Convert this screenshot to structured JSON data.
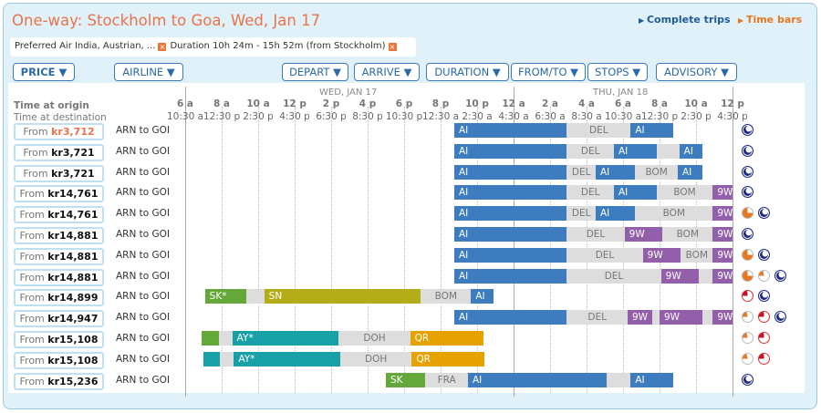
{
  "title": "One-way: Stockholm to Goa, Wed, Jan 17",
  "view_links": [
    {
      "label": "Complete trips",
      "color": "#1f5a99"
    },
    {
      "label": "Time bars",
      "color": "#e87722"
    }
  ],
  "filters": [
    "Preferred Air India, Austrian, ...",
    "Duration 10h 24m - 15h 52m (from Stockholm)"
  ],
  "sort_buttons": [
    "PRICE ▼",
    "AIRLINE ▼",
    "DEPART ▼",
    "ARRIVE ▼",
    "DURATION ▼",
    "FROM/TO ▼",
    "STOPS ▼",
    "ADVISORY ▼"
  ],
  "header": {
    "origin_label": "Time at origin",
    "destination_label": "Time at destination",
    "day1": "WED, JAN 17",
    "day2": "THU, JAN 18"
  },
  "ticks_origin": [
    "6 a",
    "8 a",
    "10 a",
    "12 p",
    "2 p",
    "4 p",
    "6 p",
    "8 p",
    "10 p",
    "12 a",
    "2 a",
    "4 a",
    "6 a",
    "8 a",
    "10 a",
    "12 p"
  ],
  "ticks_destination": [
    "10:30 a",
    "12:30 p",
    "2:30 p",
    "4:30 p",
    "6:30 p",
    "8:30 p",
    "10:30 p",
    "12:30 a",
    "2:30 a",
    "4:30 a",
    "6:30 a",
    "8:30 a",
    "10:30 a",
    "12:30 p",
    "2:30 p",
    "4:30 p"
  ],
  "airline_colors": {
    "AI": "#3d7dbf",
    "9W": "#935fab",
    "SK": "#64a83a",
    "SK*": "#64a83a",
    "SN": "#b3ad19",
    "AY": "#17a0a6",
    "AY*": "#17a0a6",
    "QR": "#e5a200",
    "layover": "#dddddd"
  },
  "rows": [
    {
      "from": "From",
      "price": "kr3,712",
      "best": true,
      "route": "ARN to GOI",
      "segments": [
        [
          "AI",
          "Wed 20:45",
          "Thu 02:55"
        ],
        [
          "DEL",
          "Thu 02:55",
          "Thu 06:25",
          1
        ],
        [
          "AI",
          "Thu 06:25",
          "Thu 08:45"
        ]
      ],
      "advisory": [
        "overnight"
      ]
    },
    {
      "from": "From",
      "price": "kr3,721",
      "route": "ARN to GOI",
      "segments": [
        [
          "AI",
          "Wed 20:45",
          "Thu 02:55"
        ],
        [
          "DEL",
          "Thu 02:55",
          "Thu 05:30",
          1
        ],
        [
          "AI",
          "Thu 05:30",
          "Thu 07:50"
        ],
        [
          "",
          "Thu 07:50",
          "Thu 09:05",
          1
        ],
        [
          "AI",
          "Thu 09:05",
          "Thu 10:20"
        ]
      ],
      "advisory": [
        "overnight"
      ]
    },
    {
      "from": "From",
      "price": "kr3,721",
      "route": "ARN to GOI",
      "segments": [
        [
          "AI",
          "Wed 20:45",
          "Thu 02:55"
        ],
        [
          "DEL",
          "Thu 02:55",
          "Thu 04:30",
          1
        ],
        [
          "AI",
          "Thu 04:30",
          "Thu 06:40"
        ],
        [
          "BOM",
          "Thu 06:40",
          "Thu 09:00",
          1
        ],
        [
          "AI",
          "Thu 09:00",
          "Thu 10:20"
        ]
      ],
      "advisory": [
        "overnight"
      ]
    },
    {
      "from": "From",
      "price": "kr14,761",
      "route": "ARN to GOI",
      "segments": [
        [
          "AI",
          "Wed 20:45",
          "Thu 02:55"
        ],
        [
          "DEL",
          "Thu 02:55",
          "Thu 05:30",
          1
        ],
        [
          "AI",
          "Thu 05:30",
          "Thu 07:50"
        ],
        [
          "BOM",
          "Thu 07:50",
          "Thu 10:55",
          1
        ],
        [
          "9W",
          "Thu 10:55",
          "Thu 12:00"
        ]
      ],
      "advisory": [
        "overnight"
      ]
    },
    {
      "from": "From",
      "price": "kr14,761",
      "route": "ARN to GOI",
      "segments": [
        [
          "AI",
          "Wed 20:45",
          "Thu 02:55"
        ],
        [
          "DEL",
          "Thu 02:55",
          "Thu 04:30",
          1
        ],
        [
          "AI",
          "Thu 04:30",
          "Thu 06:40"
        ],
        [
          "BOM",
          "Thu 06:40",
          "Thu 10:55",
          1
        ],
        [
          "9W",
          "Thu 10:55",
          "Thu 12:00"
        ]
      ],
      "advisory": [
        "long-layover",
        "overnight"
      ]
    },
    {
      "from": "From",
      "price": "kr14,881",
      "route": "ARN to GOI",
      "segments": [
        [
          "AI",
          "Wed 20:45",
          "Thu 02:55"
        ],
        [
          "DEL",
          "Thu 02:55",
          "Thu 06:05",
          1
        ],
        [
          "9W",
          "Thu 06:05",
          "Thu 08:10"
        ],
        [
          "BOM",
          "Thu 08:10",
          "Thu 10:55",
          1
        ],
        [
          "9W",
          "Thu 10:55",
          "Thu 12:00"
        ]
      ],
      "advisory": [
        "overnight"
      ]
    },
    {
      "from": "From",
      "price": "kr14,881",
      "route": "ARN to GOI",
      "segments": [
        [
          "AI",
          "Wed 20:45",
          "Thu 02:55"
        ],
        [
          "DEL",
          "Thu 02:55",
          "Thu 07:05",
          1
        ],
        [
          "9W",
          "Thu 07:05",
          "Thu 09:10"
        ],
        [
          "BOM",
          "Thu 09:10",
          "Thu 10:55",
          1
        ],
        [
          "9W",
          "Thu 10:55",
          "Thu 12:00"
        ]
      ],
      "advisory": [
        "long-layover",
        "overnight"
      ]
    },
    {
      "from": "From",
      "price": "kr14,881",
      "route": "ARN to GOI",
      "segments": [
        [
          "AI",
          "Wed 20:45",
          "Thu 02:55"
        ],
        [
          "DEL",
          "Thu 02:55",
          "Thu 08:05",
          1
        ],
        [
          "9W",
          "Thu 08:05",
          "Thu 10:10"
        ],
        [
          "",
          "Thu 10:10",
          "Thu 10:55",
          1
        ],
        [
          "9W",
          "Thu 10:55",
          "Thu 12:00"
        ]
      ],
      "advisory": [
        "long-layover",
        "short-layover",
        "overnight"
      ]
    },
    {
      "from": "From",
      "price": "kr14,899",
      "route": "ARN to GOI",
      "segments": [
        [
          "SK*",
          "Wed 07:05",
          "Wed 09:20"
        ],
        [
          "",
          "Wed 09:20",
          "Wed 10:20",
          1
        ],
        [
          "SN",
          "Wed 10:20",
          "Wed 18:55"
        ],
        [
          "BOM",
          "Wed 18:55",
          "Wed 21:40",
          1
        ],
        [
          "AI",
          "Wed 21:40",
          "Wed 22:55"
        ]
      ],
      "advisory": [
        "tight-connection",
        "overnight"
      ]
    },
    {
      "from": "From",
      "price": "kr14,947",
      "route": "ARN to GOI",
      "segments": [
        [
          "AI",
          "Wed 20:45",
          "Thu 02:55"
        ],
        [
          "DEL",
          "Thu 02:55",
          "Thu 06:15",
          1
        ],
        [
          "9W",
          "Thu 06:15",
          "Thu 07:35"
        ],
        [
          "",
          "Thu 07:35",
          "Thu 08:00",
          1
        ],
        [
          "9W",
          "Thu 08:00",
          "Thu 10:20"
        ],
        [
          "",
          "Thu 10:20",
          "Thu 10:55",
          1
        ],
        [
          "9W",
          "Thu 10:55",
          "Thu 12:00"
        ]
      ],
      "advisory": [
        "short-layover",
        "tight-connection",
        "overnight"
      ]
    },
    {
      "from": "From",
      "price": "kr15,108",
      "route": "ARN to GOI",
      "segments": [
        [
          "SK",
          "Wed 06:55",
          "Wed 07:50",
          0,
          ""
        ],
        [
          "",
          "Wed 07:50",
          "Wed 08:35",
          1
        ],
        [
          "AY*",
          "Wed 08:35",
          "Wed 14:25"
        ],
        [
          "DOH",
          "Wed 14:25",
          "Wed 18:20",
          1
        ],
        [
          "QR",
          "Wed 18:20",
          "Wed 22:20"
        ]
      ],
      "advisory": [
        "short-layover",
        "tight-connection"
      ]
    },
    {
      "from": "From",
      "price": "kr15,108",
      "route": "ARN to GOI",
      "segments": [
        [
          "AY",
          "Wed 07:00",
          "Wed 07:55",
          0,
          ""
        ],
        [
          "",
          "Wed 07:55",
          "Wed 08:40",
          1
        ],
        [
          "AY*",
          "Wed 08:40",
          "Wed 14:30"
        ],
        [
          "DOH",
          "Wed 14:30",
          "Wed 18:25",
          1
        ],
        [
          "QR",
          "Wed 18:25",
          "Wed 22:25"
        ]
      ],
      "advisory": [
        "short-layover",
        "tight-connection"
      ]
    },
    {
      "from": "From",
      "price": "kr15,236",
      "route": "ARN to GOI",
      "segments": [
        [
          "SK",
          "Wed 17:00",
          "Wed 19:10"
        ],
        [
          "FRA",
          "Wed 19:10",
          "Wed 21:30",
          1
        ],
        [
          "AI",
          "Wed 21:30",
          "Thu 05:05"
        ],
        [
          "",
          "Thu 05:05",
          "Thu 06:25",
          1
        ],
        [
          "AI",
          "Thu 06:25",
          "Thu 08:45"
        ]
      ],
      "advisory": [
        "overnight"
      ]
    }
  ]
}
